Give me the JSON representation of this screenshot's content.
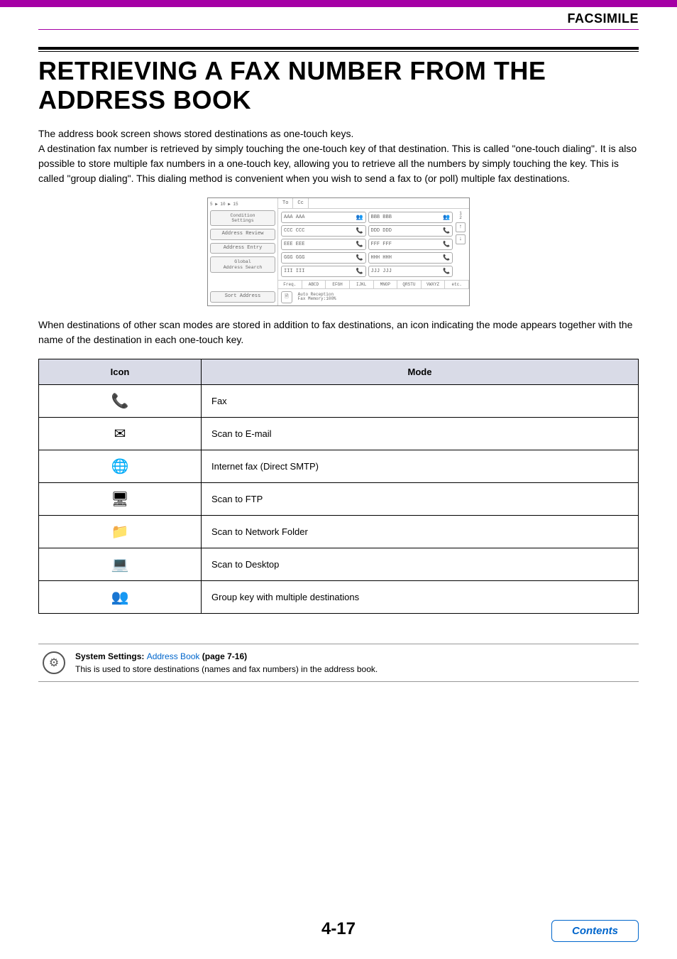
{
  "header": {
    "section": "FACSIMILE"
  },
  "title": "RETRIEVING A FAX NUMBER FROM THE ADDRESS BOOK",
  "lead1": "The address book screen shows stored destinations as one-touch keys.\nA destination fax number is retrieved by simply touching the one-touch key of that destination. This is called \"one-touch dialing\". It is also possible to store multiple fax numbers in a one-touch key, allowing you to retrieve all the numbers by simply touching the key. This is called \"group dialing\". This dialing method is convenient when you wish to send a fax to (or poll) multiple fax destinations.",
  "ui": {
    "breadcrumb": "5 ▶ 10 ▶ 15",
    "to_label": "To",
    "cc_label": "Cc",
    "left_buttons": [
      "Condition\nSettings",
      "Address Review",
      "Address Entry",
      "Global\nAddress Search"
    ],
    "keys": [
      {
        "label": "AAA AAA",
        "icon": "group"
      },
      {
        "label": "BBB BBB",
        "icon": "group"
      },
      {
        "label": "CCC CCC",
        "icon": "fax"
      },
      {
        "label": "DDD DDD",
        "icon": "fax"
      },
      {
        "label": "EEE EEE",
        "icon": "fax"
      },
      {
        "label": "FFF FFF",
        "icon": "fax"
      },
      {
        "label": "GGG GGG",
        "icon": "fax"
      },
      {
        "label": "HHH HHH",
        "icon": "fax"
      },
      {
        "label": "III III",
        "icon": "fax"
      },
      {
        "label": "JJJ JJJ",
        "icon": "fax"
      }
    ],
    "page_current": "1",
    "page_total": "2",
    "tabs": [
      "Freq.",
      "ABCD",
      "EFGH",
      "IJKL",
      "MNOP",
      "QRSTU",
      "VWXYZ",
      "etc."
    ],
    "sort_label": "Sort Address",
    "status": "Auto Reception\nFax Memory:100%"
  },
  "lead2": "When destinations of other scan modes are stored in addition to fax destinations, an icon indicating the mode appears together with the name of the destination in each one-touch key.",
  "table": {
    "headers": [
      "Icon",
      "Mode"
    ],
    "rows": [
      {
        "icon": "📞",
        "mode": "Fax"
      },
      {
        "icon": "✉",
        "mode": "Scan to E-mail"
      },
      {
        "icon": "🌐",
        "mode": "Internet fax (Direct SMTP)"
      },
      {
        "icon": "🖥",
        "mode": "Scan to FTP"
      },
      {
        "icon": "📁",
        "mode": "Scan to Network Folder"
      },
      {
        "icon": "💻",
        "mode": "Scan to Desktop"
      },
      {
        "icon": "👥",
        "mode": "Group key with multiple destinations"
      }
    ]
  },
  "settings": {
    "prefix": "System Settings: ",
    "link": "Address Book",
    "suffix": " (page 7-16)",
    "desc": "This is used to store destinations (names and fax numbers) in the address book."
  },
  "footer": {
    "page": "4-17",
    "contents": "Contents"
  }
}
